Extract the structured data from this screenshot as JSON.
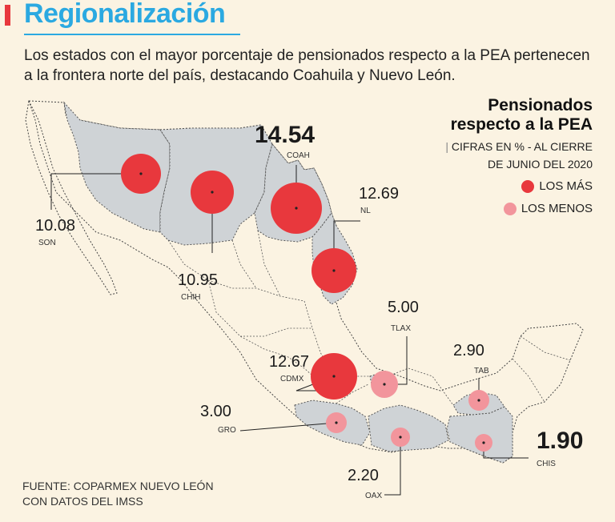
{
  "header": {
    "title": "Regionalización",
    "subtitle": "Los estados con el mayor porcentaje de pensionados respecto a la PEA pertenecen a la frontera norte del país, destacando Coahuila y Nuevo León."
  },
  "legend": {
    "title_line1": "Pensionados",
    "title_line2": "respecto a la PEA",
    "sub_line1": "CIFRAS EN % - AL CIERRE",
    "sub_line2": "DE JUNIO DEL 2020",
    "max_label": "LOS MÁS",
    "min_label": "LOS MENOS"
  },
  "colors": {
    "background": "#fbf3e2",
    "land": "#cfd3d6",
    "title": "#2ba9e1",
    "max": "#e8383d",
    "min": "#f2959c"
  },
  "source": {
    "line1": "FUENTE: COPARMEX NUEVO LEÓN",
    "line2": "CON DATOS DEL IMSS"
  },
  "states": [
    {
      "id": "son",
      "code": "SON",
      "value": "10.08",
      "group": "max"
    },
    {
      "id": "chih",
      "code": "CHIH",
      "value": "10.95",
      "group": "max"
    },
    {
      "id": "coah",
      "code": "COAH",
      "value": "14.54",
      "group": "max"
    },
    {
      "id": "nl",
      "code": "NL",
      "value": "12.69",
      "group": "max"
    },
    {
      "id": "cdmx",
      "code": "CDMX",
      "value": "12.67",
      "group": "max"
    },
    {
      "id": "tlax",
      "code": "TLAX",
      "value": "5.00",
      "group": "min"
    },
    {
      "id": "tab",
      "code": "TAB",
      "value": "2.90",
      "group": "min"
    },
    {
      "id": "gro",
      "code": "GRO",
      "value": "3.00",
      "group": "min"
    },
    {
      "id": "oax",
      "code": "OAX",
      "value": "2.20",
      "group": "min"
    },
    {
      "id": "chis",
      "code": "CHIS",
      "value": "1.90",
      "group": "min"
    }
  ]
}
